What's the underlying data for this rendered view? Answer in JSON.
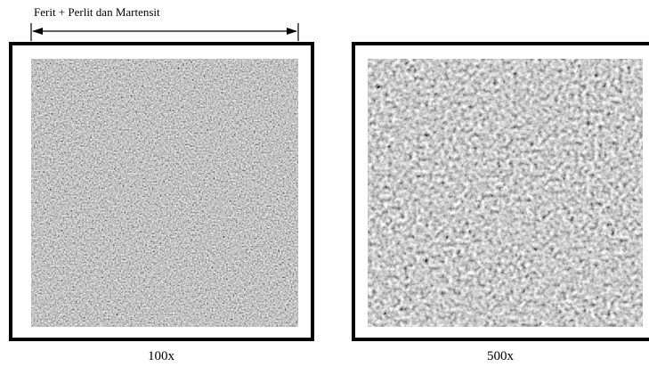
{
  "annotation": "Ferit + Perlit dan Martensit",
  "panels": [
    {
      "label": "100x"
    },
    {
      "label": "500x"
    }
  ]
}
